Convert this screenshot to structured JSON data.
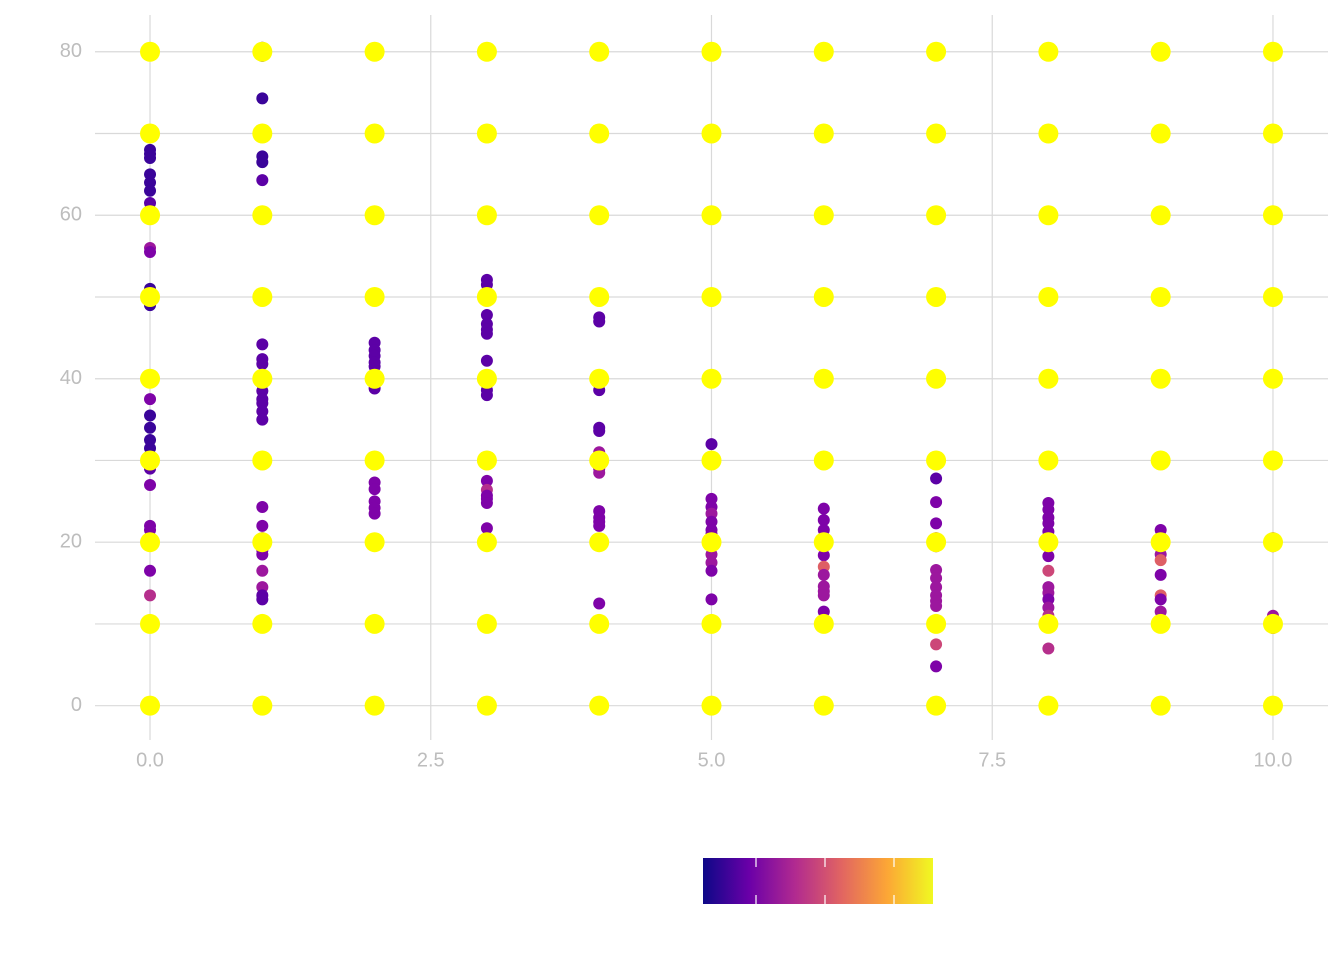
{
  "chart_data": {
    "type": "scatter",
    "xlim": [
      -0.49,
      10.49
    ],
    "ylim": [
      -4.2,
      84.5
    ],
    "xticks": [
      {
        "value": 0,
        "label": "0.0"
      },
      {
        "value": 2.5,
        "label": "2.5"
      },
      {
        "value": 5,
        "label": "5.0"
      },
      {
        "value": 7.5,
        "label": "7.5"
      },
      {
        "value": 10,
        "label": "10.0"
      }
    ],
    "yticks": [
      0,
      20,
      40,
      60,
      80
    ],
    "y_minor_ticks": [
      10,
      30,
      50,
      70
    ],
    "grid": true,
    "colorbar_colors": [
      "#0d0887",
      "#6a00a8",
      "#b12a90",
      "#e16462",
      "#fca636",
      "#f0f921"
    ],
    "series": [
      {
        "x": [
          0,
          0,
          0,
          0,
          0,
          0,
          0,
          0,
          0,
          0,
          0,
          0,
          0,
          0,
          0,
          0,
          0,
          0,
          0,
          0,
          0,
          0,
          0,
          0,
          0,
          0,
          0,
          1,
          1,
          1,
          1,
          1,
          1,
          1,
          1,
          1,
          1,
          1,
          1,
          1,
          1,
          1,
          1,
          1,
          1,
          1,
          1,
          1,
          1,
          1,
          1,
          2,
          2,
          2,
          2,
          2,
          2,
          2,
          2,
          2,
          2,
          2,
          2,
          3,
          3,
          3,
          3,
          3,
          3,
          3,
          3,
          3,
          3,
          3,
          3,
          3,
          3,
          3,
          4,
          4,
          4,
          4,
          4,
          4,
          4,
          4,
          4,
          4,
          4,
          4,
          4,
          5,
          5,
          5,
          5,
          5,
          5,
          5,
          5,
          5,
          5,
          5,
          5,
          6,
          6,
          6,
          6,
          6,
          6,
          6,
          6,
          6,
          6,
          6,
          7,
          7,
          7,
          7,
          7,
          7,
          7,
          7,
          7,
          7,
          7,
          7,
          7,
          8,
          8,
          8,
          8,
          8,
          8,
          8,
          8,
          8,
          8,
          8,
          8,
          8,
          8,
          9,
          9,
          9,
          9,
          9,
          9,
          9,
          9,
          10,
          10,
          10,
          10,
          10
        ],
        "values": [
          68,
          67.5,
          67,
          65,
          64,
          63,
          61.5,
          60,
          56,
          55.5,
          51,
          50,
          49.5,
          49,
          37.5,
          35.5,
          34,
          32.5,
          31.5,
          30.5,
          29.5,
          29,
          27,
          22,
          21.5,
          16.5,
          13.5,
          80.5,
          79.5,
          74.3,
          67.2,
          66.5,
          64.3,
          44.2,
          42.4,
          41.8,
          40.5,
          38.5,
          37.5,
          37,
          36,
          35,
          24.3,
          22,
          20.5,
          19,
          18.5,
          16.5,
          14.5,
          13.5,
          13,
          44.4,
          43.5,
          42.8,
          42,
          41.5,
          40.5,
          38.8,
          27.3,
          26.5,
          25,
          24.2,
          23.5,
          52.1,
          51.5,
          47.8,
          46.7,
          46,
          45.5,
          42.2,
          38.6,
          38,
          27.5,
          26.4,
          25.7,
          25.3,
          24.8,
          21.7,
          47.5,
          47,
          38.6,
          34,
          33.6,
          31,
          29,
          28.5,
          23.8,
          23,
          22.5,
          22,
          12.5,
          32,
          25.3,
          24.3,
          23.5,
          22.5,
          21.5,
          21,
          19.5,
          18.5,
          17.5,
          16.5,
          13,
          24.1,
          22.7,
          21.5,
          20.5,
          18.4,
          17,
          16,
          14.6,
          14,
          13.5,
          11.5,
          27.8,
          24.9,
          22.3,
          20.5,
          19.5,
          16.6,
          15.6,
          14.5,
          13.5,
          12.8,
          12.2,
          7.5,
          4.8,
          24.8,
          24,
          23,
          22.3,
          21.3,
          20.5,
          18.3,
          16.5,
          14.5,
          13.8,
          13,
          12,
          11,
          7,
          21.5,
          18.5,
          17.8,
          16,
          13.5,
          13,
          11.5,
          10.5,
          20.5,
          19.5,
          11,
          10,
          9.5
        ],
        "colors": [
          "#3a049a",
          "#3a049a",
          "#3a049a",
          "#3a049a",
          "#3a049a",
          "#3a049a",
          "#5c01a6",
          "#5c01a6",
          "#9c179e",
          "#7e03a8",
          "#3a049a",
          "#3a049a",
          "#3a049a",
          "#3a049a",
          "#7e03a8",
          "#3a049a",
          "#3a049a",
          "#3a049a",
          "#3a049a",
          "#3a049a",
          "#3a049a",
          "#5c01a6",
          "#7e03a8",
          "#7e03a8",
          "#7e03a8",
          "#7e03a8",
          "#b52f8c",
          "#3a049a",
          "#3a049a",
          "#3a049a",
          "#3a049a",
          "#3a049a",
          "#5c01a6",
          "#5c01a6",
          "#5c01a6",
          "#5c01a6",
          "#5c01a6",
          "#5c01a6",
          "#5c01a6",
          "#5c01a6",
          "#5c01a6",
          "#5c01a6",
          "#7e03a8",
          "#7e03a8",
          "#7e03a8",
          "#7e03a8",
          "#7e03a8",
          "#9c179e",
          "#9c179e",
          "#5c01a6",
          "#5c01a6",
          "#5c01a6",
          "#5c01a6",
          "#5c01a6",
          "#5c01a6",
          "#5c01a6",
          "#5c01a6",
          "#5c01a6",
          "#7e03a8",
          "#7e03a8",
          "#7e03a8",
          "#7e03a8",
          "#7e03a8",
          "#5c01a6",
          "#5c01a6",
          "#5c01a6",
          "#5c01a6",
          "#5c01a6",
          "#5c01a6",
          "#5c01a6",
          "#5c01a6",
          "#5c01a6",
          "#7e03a8",
          "#b52f8c",
          "#7e03a8",
          "#7e03a8",
          "#7e03a8",
          "#7e03a8",
          "#5c01a6",
          "#5c01a6",
          "#5c01a6",
          "#5c01a6",
          "#5c01a6",
          "#9c179e",
          "#7e03a8",
          "#9c179e",
          "#7e03a8",
          "#7e03a8",
          "#7e03a8",
          "#7e03a8",
          "#7e03a8",
          "#5c01a6",
          "#7e03a8",
          "#7e03a8",
          "#9c179e",
          "#7e03a8",
          "#7e03a8",
          "#7e03a8",
          "#9c179e",
          "#9c179e",
          "#9c179e",
          "#7e03a8",
          "#7e03a8",
          "#7e03a8",
          "#7e03a8",
          "#7e03a8",
          "#9c179e",
          "#7e03a8",
          "#de5f65",
          "#9c179e",
          "#9c179e",
          "#9c179e",
          "#9c179e",
          "#7e03a8",
          "#5c01a6",
          "#7e03a8",
          "#7e03a8",
          "#9c179e",
          "#7e03a8",
          "#9c179e",
          "#9c179e",
          "#9c179e",
          "#9c179e",
          "#9c179e",
          "#9c179e",
          "#cc4778",
          "#7e03a8",
          "#7e03a8",
          "#7e03a8",
          "#7e03a8",
          "#7e03a8",
          "#7e03a8",
          "#9c179e",
          "#7e03a8",
          "#cc4778",
          "#9c179e",
          "#9c179e",
          "#7e03a8",
          "#9c179e",
          "#b52f8c",
          "#b52f8c",
          "#7e03a8",
          "#9c179e",
          "#de5f65",
          "#7e03a8",
          "#de5f65",
          "#7e03a8",
          "#9c179e",
          "#9c179e",
          "#9c179e",
          "#9c179e",
          "#9c179e",
          "#7e03a8",
          "#9c179e"
        ]
      },
      {
        "color": "#ffff00",
        "x": [
          0,
          0,
          0,
          0,
          0,
          0,
          0,
          0,
          0,
          1,
          1,
          1,
          1,
          1,
          1,
          1,
          1,
          1,
          2,
          2,
          2,
          2,
          2,
          2,
          2,
          2,
          2,
          3,
          3,
          3,
          3,
          3,
          3,
          3,
          3,
          3,
          4,
          4,
          4,
          4,
          4,
          4,
          4,
          4,
          4,
          5,
          5,
          5,
          5,
          5,
          5,
          5,
          5,
          5,
          6,
          6,
          6,
          6,
          6,
          6,
          6,
          6,
          6,
          7,
          7,
          7,
          7,
          7,
          7,
          7,
          7,
          7,
          8,
          8,
          8,
          8,
          8,
          8,
          8,
          8,
          8,
          9,
          9,
          9,
          9,
          9,
          9,
          9,
          9,
          9,
          10,
          10,
          10,
          10,
          10,
          10,
          10,
          10,
          10
        ],
        "values": [
          0,
          10,
          20,
          30,
          40,
          50,
          60,
          70,
          80,
          0,
          10,
          20,
          30,
          40,
          50,
          60,
          70,
          80,
          0,
          10,
          20,
          30,
          40,
          50,
          60,
          70,
          80,
          0,
          10,
          20,
          30,
          40,
          50,
          60,
          70,
          80,
          0,
          10,
          20,
          30,
          40,
          50,
          60,
          70,
          80,
          0,
          10,
          20,
          30,
          40,
          50,
          60,
          70,
          80,
          0,
          10,
          20,
          30,
          40,
          50,
          60,
          70,
          80,
          0,
          10,
          20,
          30,
          40,
          50,
          60,
          70,
          80,
          0,
          10,
          20,
          30,
          40,
          50,
          60,
          70,
          80,
          0,
          10,
          20,
          30,
          40,
          50,
          60,
          70,
          80,
          0,
          10,
          20,
          30,
          40,
          50,
          60,
          70,
          80
        ]
      }
    ]
  }
}
